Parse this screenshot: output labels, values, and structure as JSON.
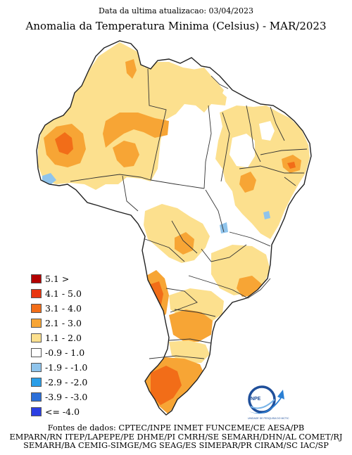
{
  "header": {
    "update_line": "Data da ultima atualizacao: 03/04/2023",
    "title": "Anomalia da Temperatura Minima (Celsius) - MAR/2023"
  },
  "legend": [
    {
      "label": "5.1 >",
      "color": "#b30000"
    },
    {
      "label": "4.1 - 5.0",
      "color": "#e8350f"
    },
    {
      "label": "3.1 - 4.0",
      "color": "#f26d18"
    },
    {
      "label": "2.1 - 3.0",
      "color": "#f7a535"
    },
    {
      "label": "1.1 - 2.0",
      "color": "#fce08e"
    },
    {
      "label": "-0.9 - 1.0",
      "color": "#ffffff"
    },
    {
      "label": "-1.9 - -1.0",
      "color": "#8fc4ec"
    },
    {
      "label": "-2.9 - -2.0",
      "color": "#2a9ee8"
    },
    {
      "label": "-3.9 - -3.0",
      "color": "#2b6fd9"
    },
    {
      "label": "<= -4.0",
      "color": "#2b3fe3"
    }
  ],
  "logo": {
    "name": "INPE",
    "caption": "UNIDADE DE PESQUISA DO MCTIC"
  },
  "sources": {
    "line1": "Fontes de dados: CPTEC/INPE INMET FUNCEME/CE AESA/PB",
    "line2": "EMPARN/RN ITEP/LAPEPE/PE DHME/PI CMRH/SE SEMARH/DHN/AL COMET/RJ",
    "line3": "SEMARH/BA CEMIG-SIMGE/MG SEAG/ES SIMEPAR/PR CIRAM/SC IAC/SP"
  }
}
